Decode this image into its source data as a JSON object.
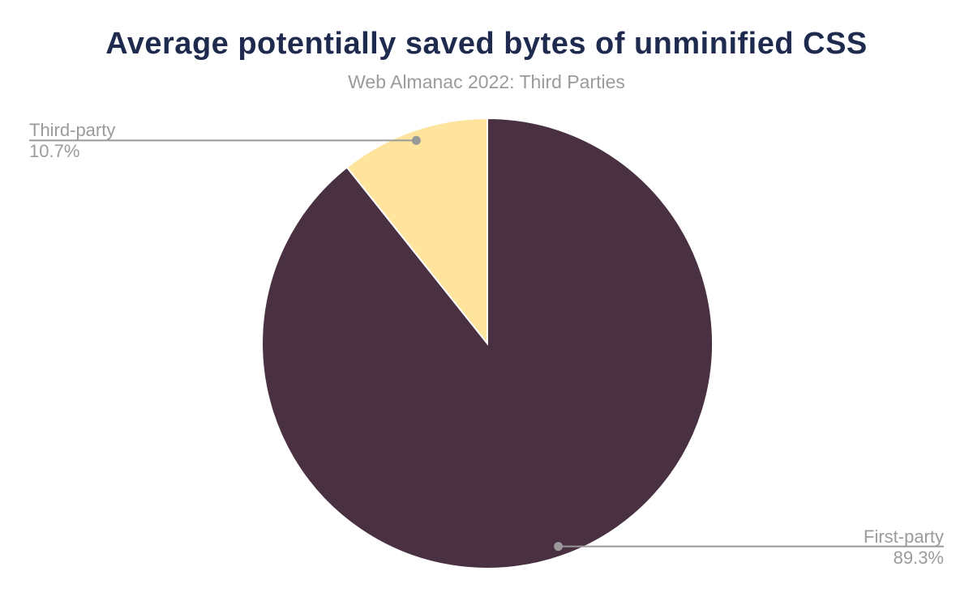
{
  "header": {
    "title": "Average potentially saved bytes of unminified CSS",
    "subtitle": "Web Almanac 2022: Third Parties",
    "title_color": "#1e2b4e",
    "subtitle_color": "#9b9b9b"
  },
  "chart_data": {
    "type": "pie",
    "title": "Average potentially saved bytes of unminified CSS",
    "subtitle": "Web Almanac 2022: Third Parties",
    "start_angle": "12-oclock",
    "direction": "clockwise",
    "slices": [
      {
        "label": "First-party",
        "value": 89.3,
        "pct_label": "89.3%",
        "color": "#4a3142",
        "callout_side": "right"
      },
      {
        "label": "Third-party",
        "value": 10.7,
        "pct_label": "10.7%",
        "color": "#ffe49d",
        "callout_side": "left"
      }
    ],
    "slice_border_color": "#ffffff",
    "leader_line_color": "#999999",
    "label_text_color": "#9b9b9b",
    "legend": "none",
    "background": "#ffffff"
  }
}
